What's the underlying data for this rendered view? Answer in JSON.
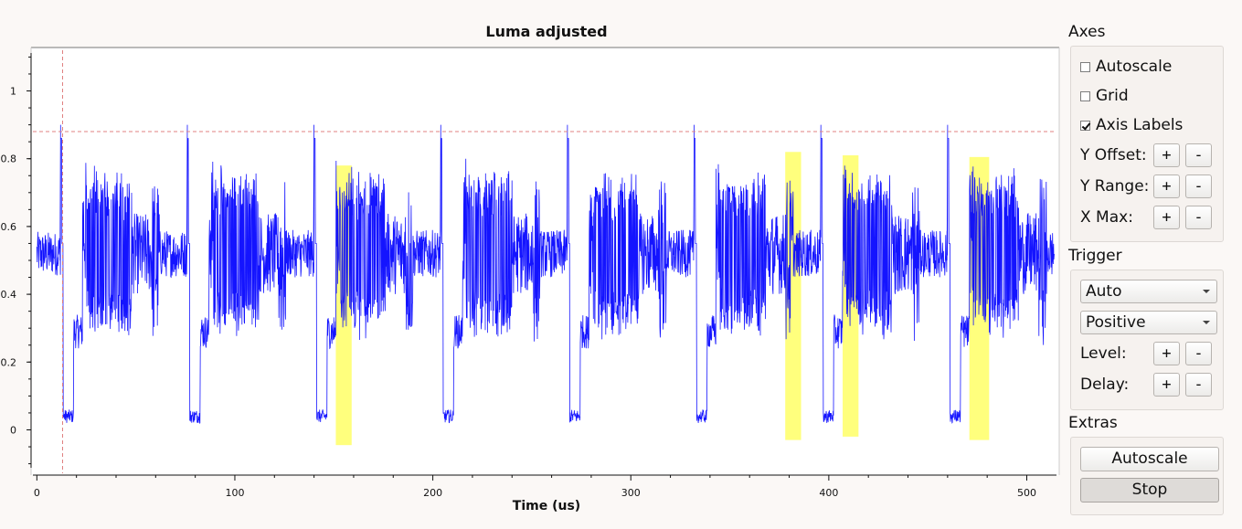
{
  "chart_data": {
    "type": "line",
    "title": "Luma adjusted",
    "xlabel": "Time (us)",
    "ylabel": "",
    "xlim": [
      -2,
      515
    ],
    "ylim": [
      -0.12,
      1.12
    ],
    "xticks": [
      0,
      100,
      200,
      300,
      400,
      500
    ],
    "yticks": [
      0,
      0.2,
      0.4,
      0.6,
      0.8,
      1
    ],
    "xtick_labels": [
      "0",
      "100",
      "200",
      "300",
      "400",
      "500"
    ],
    "ytick_labels": [
      "0",
      "0.2",
      "0.4",
      "0.6",
      "0.8",
      "1"
    ],
    "grid": false,
    "series_color": "#0000ff",
    "trigger_level": 0.88,
    "trigger_time": 13,
    "trigger_line_color": "#e08080",
    "line_period_us": 64,
    "line_starts_us": [
      12,
      76,
      140,
      204,
      268,
      332,
      396,
      460
    ],
    "highlight_color": "#ffff66",
    "highlights": [
      {
        "x0": 151,
        "x1": 159,
        "y0": -0.045,
        "y1": 0.78
      },
      {
        "x0": 378,
        "x1": 386,
        "y0": -0.03,
        "y1": 0.82
      },
      {
        "x0": 407,
        "x1": 415,
        "y0": -0.02,
        "y1": 0.81
      },
      {
        "x0": 471,
        "x1": 481,
        "y0": -0.03,
        "y1": 0.805
      }
    ]
  },
  "panel": {
    "axes": {
      "title": "Axes",
      "autoscale": {
        "label": "Autoscale",
        "checked": false
      },
      "grid": {
        "label": "Grid",
        "checked": false
      },
      "axis_labels": {
        "label": "Axis Labels",
        "checked": true
      },
      "y_offset": {
        "label": "Y Offset:",
        "plus": "+",
        "minus": "-"
      },
      "y_range": {
        "label": "Y Range:",
        "plus": "+",
        "minus": "-"
      },
      "x_max": {
        "label": "X Max:",
        "plus": "+",
        "minus": "-"
      }
    },
    "trigger": {
      "title": "Trigger",
      "mode": "Auto",
      "slope": "Positive",
      "level": {
        "label": "Level:",
        "plus": "+",
        "minus": "-"
      },
      "delay": {
        "label": "Delay:",
        "plus": "+",
        "minus": "-"
      }
    },
    "extras": {
      "title": "Extras",
      "autoscale_button": "Autoscale",
      "stop_button": "Stop"
    }
  }
}
